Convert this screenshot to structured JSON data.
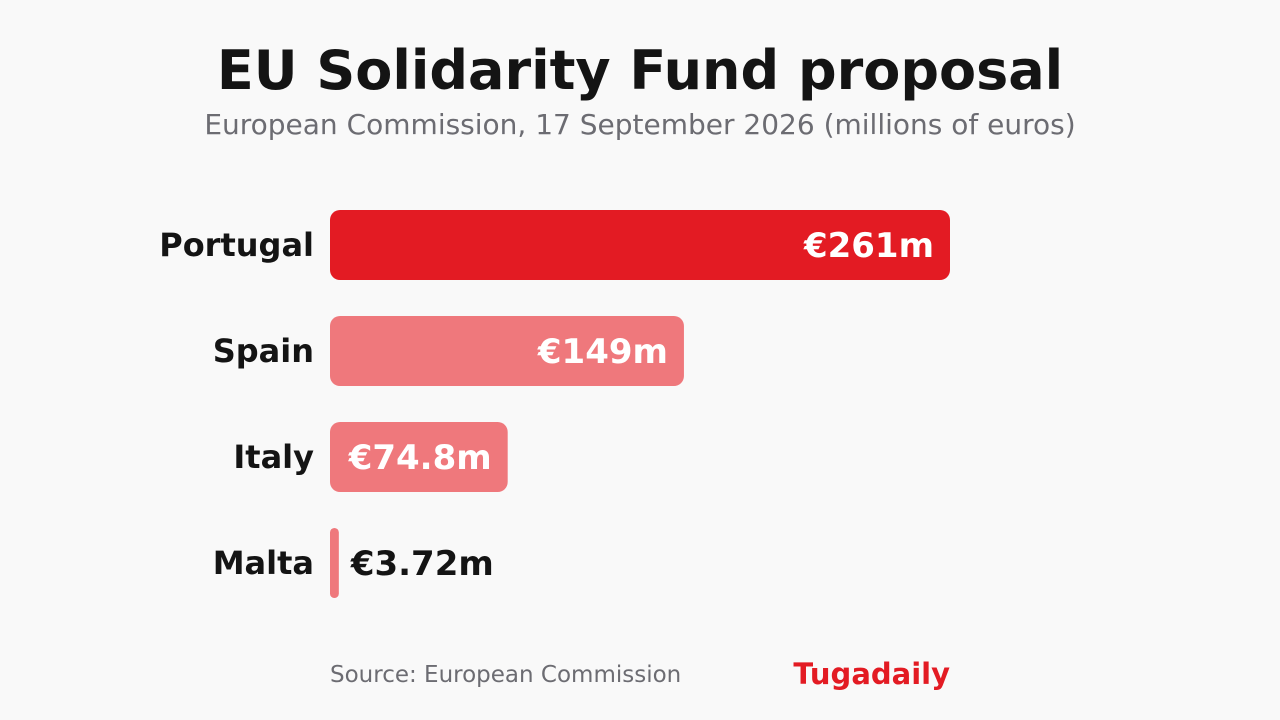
{
  "header": {
    "title": "EU Solidarity Fund proposal",
    "subtitle": "European Commission, 17 September 2026 (millions of euros)"
  },
  "footer": {
    "source": "Source: European Commission",
    "brand": "Tugadaily"
  },
  "colors": {
    "highlight_bar": "#e31b23",
    "other_bar": "#ef787c",
    "label_inside": "#ffffff",
    "label_outside": "#141414",
    "brand": "#e31b23"
  },
  "chart_data": {
    "type": "bar",
    "orientation": "horizontal",
    "title": "EU Solidarity Fund proposal",
    "subtitle": "European Commission, 17 September 2026 (millions of euros)",
    "categories": [
      "Portugal",
      "Spain",
      "Italy",
      "Malta"
    ],
    "values": [
      261,
      149,
      74.8,
      3.72
    ],
    "value_labels": [
      "€261m",
      "€149m",
      "€74.8m",
      "€3.72m"
    ],
    "highlighted": "Portugal",
    "unit": "millions of euros",
    "xlim": [
      0,
      261
    ],
    "grid": false,
    "legend": "none"
  }
}
